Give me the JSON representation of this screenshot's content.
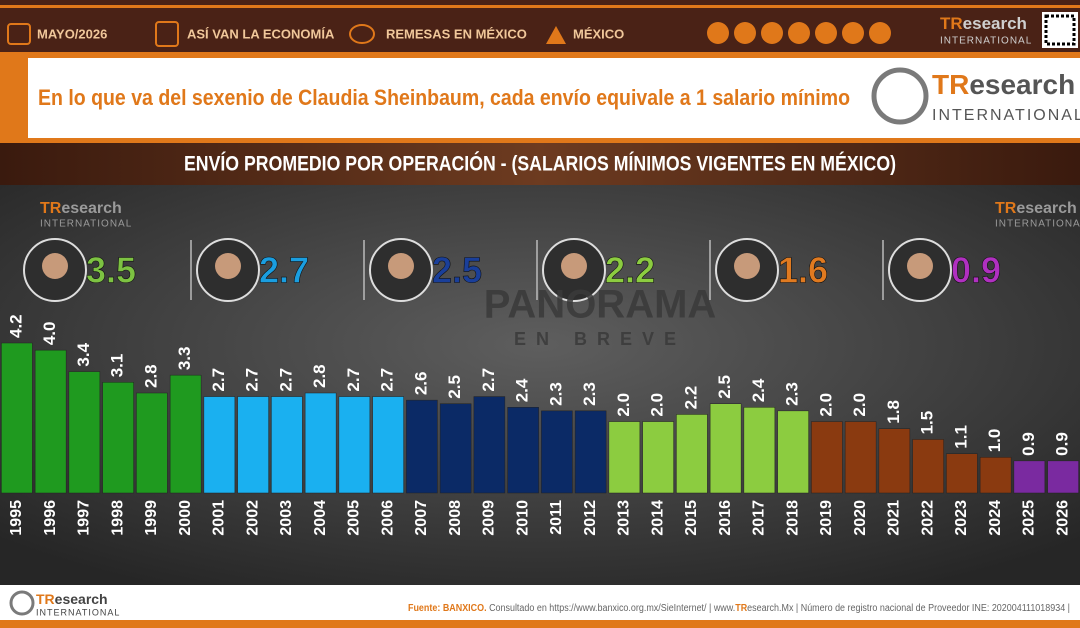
{
  "header": {
    "date": "MAYO/2026",
    "section1": "ASÍ VAN LA ECONOMÍA",
    "section2": "REMESAS EN MÉXICO",
    "section3": "MÉXICO"
  },
  "brand": {
    "a": "TR",
    "b": "esearch",
    "sub": "INTERNATIONAL"
  },
  "headline": "En lo que va del sexenio de Claudia Sheinbaum, cada envío equivale a 1 salario mínimo",
  "watermark": {
    "a": "PANORAMA",
    "b": "EN BREVE"
  },
  "footer": {
    "source": "Fuente: BANXICO.",
    "text": "Consultado en https://www.banxico.org.mx/SieInternet/  |  www.",
    "site_a": "TR",
    "site_b": "esearch.Mx",
    "tail": "| Número de registro nacional de Proveedor INE: 202004111018934  |"
  },
  "chart_data": {
    "type": "bar",
    "title": "ENVÍO PROMEDIO POR OPERACIÓN - (SALARIOS MÍNIMOS VIGENTES EN MÉXICO)",
    "categories": [
      "1995",
      "1996",
      "1997",
      "1998",
      "1999",
      "2000",
      "2001",
      "2002",
      "2003",
      "2004",
      "2005",
      "2006",
      "2007",
      "2008",
      "2009",
      "2010",
      "2011",
      "2012",
      "2013",
      "2014",
      "2015",
      "2016",
      "2017",
      "2018",
      "2019",
      "2020",
      "2021",
      "2022",
      "2023",
      "2024",
      "2025",
      "2026"
    ],
    "values": [
      4.2,
      4.0,
      3.4,
      3.1,
      2.8,
      3.3,
      2.7,
      2.7,
      2.7,
      2.8,
      2.7,
      2.7,
      2.6,
      2.5,
      2.7,
      2.4,
      2.3,
      2.3,
      2.0,
      2.0,
      2.2,
      2.5,
      2.4,
      2.3,
      2.0,
      2.0,
      1.8,
      1.5,
      1.1,
      1.0,
      0.9,
      0.9
    ],
    "value_labels": [
      "4.2",
      "4.0",
      "3.4",
      "3.1",
      "2.8",
      "3.3",
      "2.7",
      "2.7",
      "2.7",
      "2.8",
      "2.7",
      "2.7",
      "2.6",
      "2.5",
      "2.7",
      "2.4",
      "2.3",
      "2.3",
      "2.0",
      "2.0",
      "2.2",
      "2.5",
      "2.4",
      "2.3",
      "2.0",
      "2.0",
      "1.8",
      "1.5",
      "1.1",
      "1.0",
      "0.9",
      "0.9"
    ],
    "colors": [
      "#1f9a1f",
      "#1f9a1f",
      "#1f9a1f",
      "#1f9a1f",
      "#1f9a1f",
      "#1f9a1f",
      "#1ab0f0",
      "#1ab0f0",
      "#1ab0f0",
      "#1ab0f0",
      "#1ab0f0",
      "#1ab0f0",
      "#0b2a66",
      "#0b2a66",
      "#0b2a66",
      "#0b2a66",
      "#0b2a66",
      "#0b2a66",
      "#8ccc40",
      "#8ccc40",
      "#8ccc40",
      "#8ccc40",
      "#8ccc40",
      "#8ccc40",
      "#8a3a10",
      "#8a3a10",
      "#8a3a10",
      "#8a3a10",
      "#8a3a10",
      "#8a3a10",
      "#7a2aa0",
      "#7a2aa0"
    ],
    "ylim": [
      0,
      5.6
    ],
    "averages": [
      {
        "value": 3.5,
        "color": "#7dc242"
      },
      {
        "value": 2.7,
        "color": "#1a9ee0"
      },
      {
        "value": 2.5,
        "color": "#1a3f9a"
      },
      {
        "value": 2.2,
        "color": "#8ccc40"
      },
      {
        "value": 1.6,
        "color": "#e07a20"
      },
      {
        "value": 0.9,
        "color": "#b030c0"
      }
    ]
  }
}
